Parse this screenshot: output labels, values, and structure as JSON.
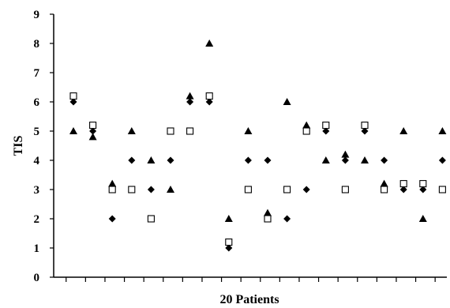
{
  "chart_data": {
    "type": "scatter",
    "title": "",
    "xlabel": "20 Patients",
    "ylabel": "TIS",
    "ylim": [
      0,
      9
    ],
    "yticks": [
      "0",
      "1",
      "2",
      "3",
      "4",
      "5",
      "6",
      "7",
      "8",
      "9"
    ],
    "x": [
      1,
      2,
      3,
      4,
      5,
      6,
      7,
      8,
      9,
      10,
      11,
      12,
      13,
      14,
      15,
      16,
      17,
      18,
      19,
      20
    ],
    "grid": false,
    "legend": "none",
    "series": [
      {
        "marker": "triangle",
        "color": "#000000",
        "values": [
          5,
          4.8,
          3.2,
          5,
          4,
          3,
          6.2,
          8,
          2,
          5,
          2.2,
          6,
          5.2,
          4,
          4.2,
          4,
          3.2,
          5,
          2,
          5
        ]
      },
      {
        "marker": "diamond",
        "color": "#000000",
        "values": [
          6,
          5,
          2,
          4,
          3,
          4,
          6,
          6,
          1,
          4,
          4,
          2,
          3,
          5,
          4,
          5,
          4,
          3,
          3,
          4
        ]
      },
      {
        "marker": "square-open",
        "color": "#000000",
        "values": [
          6.2,
          5.2,
          3,
          3,
          2,
          5,
          5,
          6.2,
          1.2,
          3,
          2,
          3,
          5,
          5.2,
          3,
          5.2,
          3,
          3.2,
          3.2,
          3
        ]
      }
    ]
  }
}
